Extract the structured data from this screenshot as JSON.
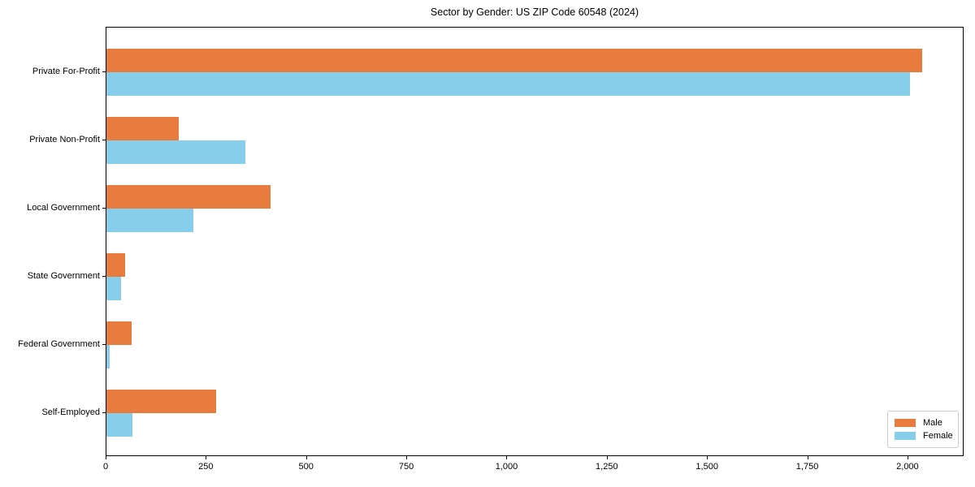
{
  "figure": {
    "background": "#ffffff"
  },
  "chart_data": {
    "type": "bar",
    "orientation": "horizontal",
    "title": "Sector by Gender: US ZIP Code 60548 (2024)",
    "xlabel": "",
    "ylabel": "",
    "grid": false,
    "xlim": [
      0,
      2140
    ],
    "categories": [
      "Private For-Profit",
      "Private Non-Profit",
      "Local Government",
      "State Government",
      "Federal Government",
      "Self-Employed"
    ],
    "series": [
      {
        "name": "Male",
        "color": "#e87c3e",
        "values": [
          2035,
          180,
          410,
          47,
          62,
          273
        ]
      },
      {
        "name": "Female",
        "color": "#87ceeb",
        "values": [
          2005,
          347,
          216,
          36,
          8,
          65
        ]
      }
    ],
    "x_ticks": [
      {
        "value": 0,
        "label": "0"
      },
      {
        "value": 250,
        "label": "250"
      },
      {
        "value": 500,
        "label": "500"
      },
      {
        "value": 750,
        "label": "750"
      },
      {
        "value": 1000,
        "label": "1,000"
      },
      {
        "value": 1250,
        "label": "1,250"
      },
      {
        "value": 1500,
        "label": "1,500"
      },
      {
        "value": 1750,
        "label": "1,750"
      },
      {
        "value": 2000,
        "label": "2,000"
      }
    ],
    "legend": {
      "position": "lower right",
      "entries": [
        "Male",
        "Female"
      ]
    }
  }
}
